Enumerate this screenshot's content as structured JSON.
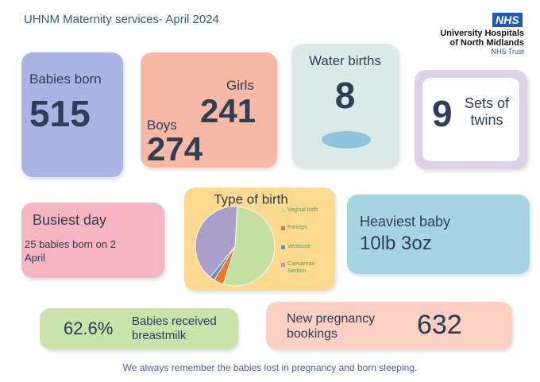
{
  "header": {
    "title": "UHNM Maternity services- April 2024",
    "logo": "NHS",
    "organisation": "University Hospitals of North Midlands",
    "trust": "NHS Trust"
  },
  "babies_born": {
    "label": "Babies born",
    "value": "515"
  },
  "gender": {
    "girls_label": "Girls",
    "girls": "241",
    "boys_label": "Boys",
    "boys": "274"
  },
  "water_births": {
    "label": "Water births",
    "value": "8"
  },
  "twins": {
    "value": "9",
    "label": "Sets of twins"
  },
  "busiest_day": {
    "label": "Busiest day",
    "text": "25 babies born on 2 April"
  },
  "chart_data": {
    "type": "pie",
    "title": "Type of birth",
    "categories": [
      "Vaginal birth",
      "Forceps",
      "Ventouse",
      "Caesarean Section"
    ],
    "values": [
      54,
      4,
      2,
      40
    ],
    "colors": [
      "#c6e0a2",
      "#e8772e",
      "#6f8fb8",
      "#aa9ecb"
    ]
  },
  "heaviest_baby": {
    "label": "Heaviest baby",
    "value": "10lb 3oz"
  },
  "breastmilk": {
    "value": "62.6%",
    "label": "Babies received breastmilk"
  },
  "bookings": {
    "label": "New pregnancy bookings",
    "value": "632"
  },
  "footer": {
    "text": "We always remember the babies lost in pregnancy and born sleeping."
  }
}
